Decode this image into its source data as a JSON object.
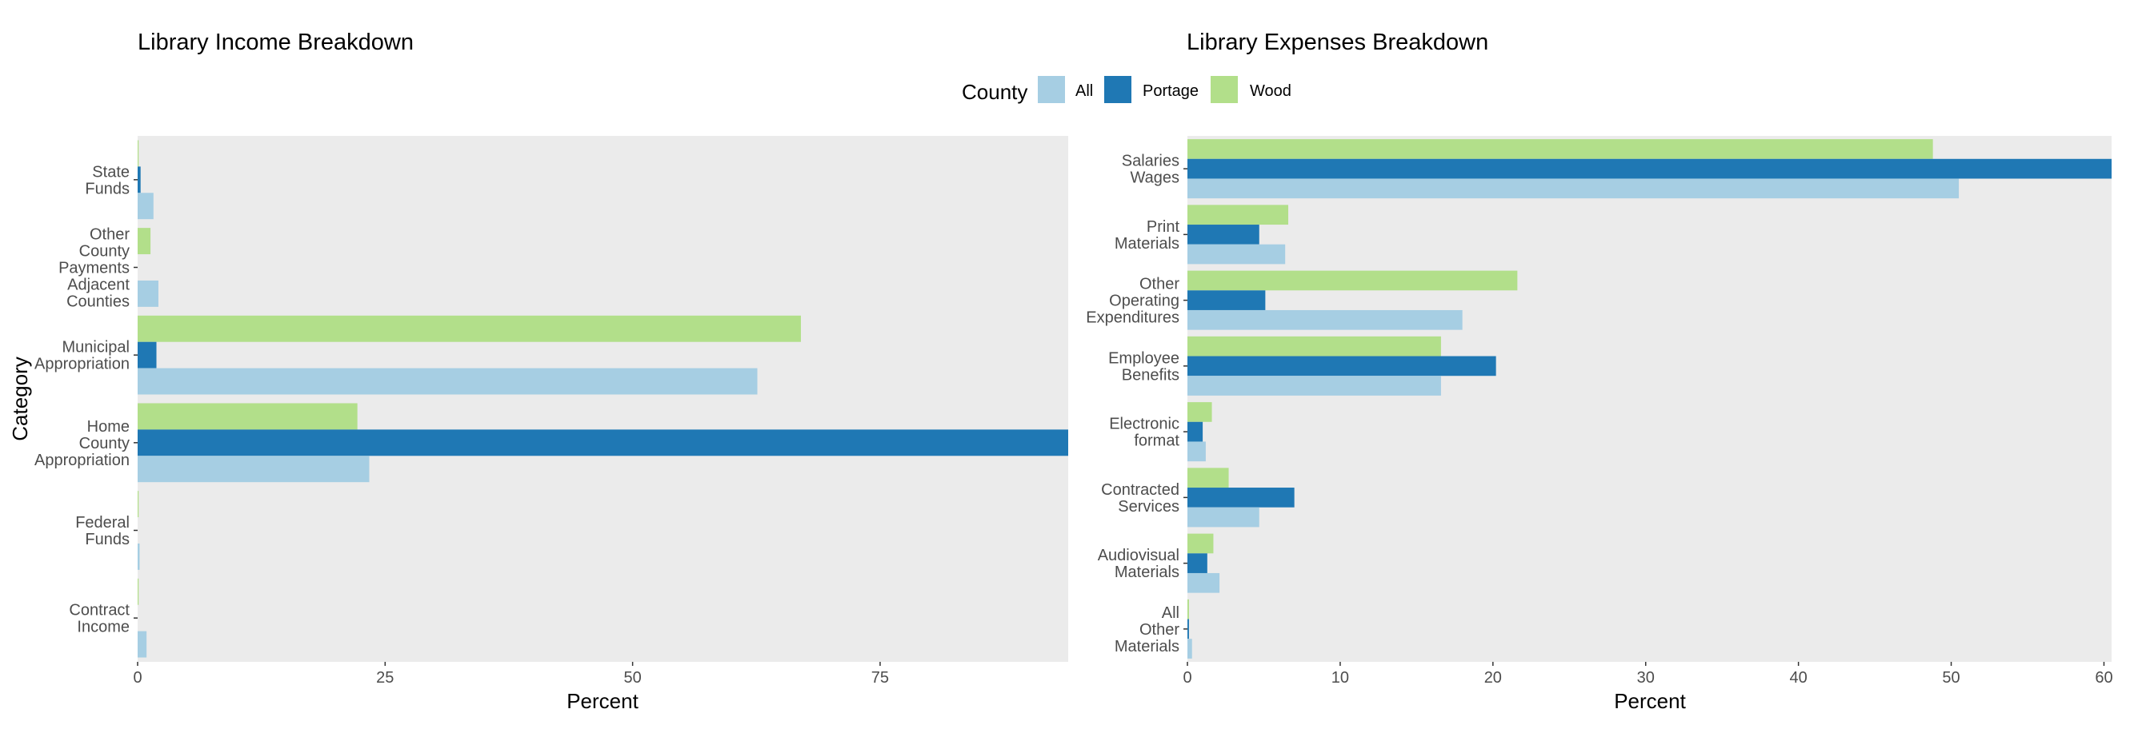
{
  "colors": {
    "All": "#a6cee3",
    "Portage": "#1f78b4",
    "Wood": "#b2df8a",
    "panel_bg": "#ebebeb",
    "tick": "#333333"
  },
  "legend": {
    "title": "County",
    "placement": "top-center",
    "items": [
      "All",
      "Portage",
      "Wood"
    ]
  },
  "chart_data": [
    {
      "type": "bar",
      "orientation": "horizontal",
      "title": "Library Income Breakdown",
      "xlabel": "Percent",
      "ylabel": "Category",
      "xlim": [
        0,
        94
      ],
      "xticks": [
        0,
        25,
        50,
        75
      ],
      "grid": false,
      "categories": [
        [
          "State",
          "Funds"
        ],
        [
          "Other",
          "County",
          "Payments",
          "Adjacent",
          "Counties"
        ],
        [
          "Municipal",
          "Appropriation"
        ],
        [
          "Home",
          "County",
          "Appropriation"
        ],
        [
          "Federal",
          "Funds"
        ],
        [
          "Contract",
          "Income"
        ]
      ],
      "series": [
        {
          "name": "Wood",
          "values": [
            0.1,
            1.3,
            67.0,
            22.2,
            0.1,
            0.1
          ]
        },
        {
          "name": "Portage",
          "values": [
            0.3,
            0.0,
            1.9,
            94.0,
            0.0,
            0.0
          ]
        },
        {
          "name": "All",
          "values": [
            1.6,
            2.1,
            62.6,
            23.4,
            0.2,
            0.9
          ]
        }
      ]
    },
    {
      "type": "bar",
      "orientation": "horizontal",
      "title": "Library Expenses Breakdown",
      "xlabel": "Percent",
      "ylabel": "",
      "xlim": [
        0,
        60.5
      ],
      "xticks": [
        0,
        10,
        20,
        30,
        40,
        50,
        60
      ],
      "grid": false,
      "categories": [
        [
          "Salaries",
          "Wages"
        ],
        [
          "Print",
          "Materials"
        ],
        [
          "Other",
          "Operating",
          "Expenditures"
        ],
        [
          "Employee",
          "Benefits"
        ],
        [
          "Electronic",
          "format"
        ],
        [
          "Contracted",
          "Services"
        ],
        [
          "Audiovisual",
          "Materials"
        ],
        [
          "All",
          "Other",
          "Materials"
        ]
      ],
      "series": [
        {
          "name": "Wood",
          "values": [
            48.8,
            6.6,
            21.6,
            16.6,
            1.6,
            2.7,
            1.7,
            0.1
          ]
        },
        {
          "name": "Portage",
          "values": [
            60.5,
            4.7,
            5.1,
            20.2,
            1.0,
            7.0,
            1.3,
            0.1
          ]
        },
        {
          "name": "All",
          "values": [
            50.5,
            6.4,
            18.0,
            16.6,
            1.2,
            4.7,
            2.1,
            0.3
          ]
        }
      ]
    }
  ]
}
